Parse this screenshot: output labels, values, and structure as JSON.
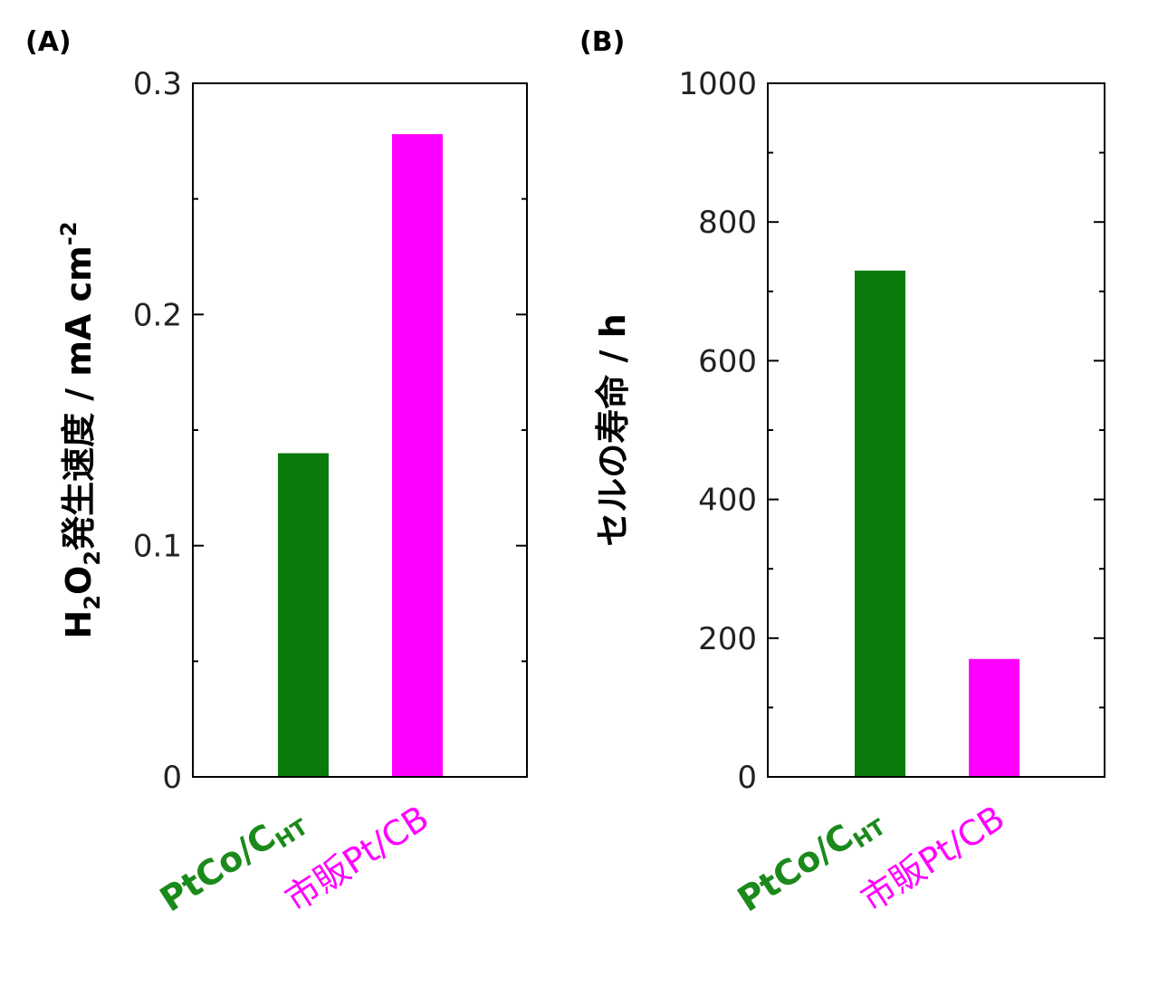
{
  "chart_data": [
    {
      "type": "bar",
      "panel": "(A)",
      "categories": [
        "PtCo/C",
        "市販Pt/CB"
      ],
      "category_subscripts": [
        "HT",
        ""
      ],
      "values": [
        0.14,
        0.278
      ],
      "colors": [
        "#0b7a0b",
        "#ff00ff"
      ],
      "ylabel": {
        "main": "H",
        "sub1": "2",
        "mid": "O",
        "sub2": "2",
        "rest": "発生速度 / mA cm",
        "sup": "-2"
      },
      "ylim": [
        0,
        0.3
      ],
      "yticks": [
        0,
        0.1,
        0.2,
        0.3
      ],
      "ytick_labels": [
        "0",
        "0.1",
        "0.2",
        "0.3"
      ],
      "yminor": [
        0.05,
        0.15,
        0.25
      ],
      "grid": false
    },
    {
      "type": "bar",
      "panel": "(B)",
      "categories": [
        "PtCo/C",
        "市販Pt/CB"
      ],
      "category_subscripts": [
        "HT",
        ""
      ],
      "values": [
        730,
        170
      ],
      "colors": [
        "#0b7a0b",
        "#ff00ff"
      ],
      "ylabel": {
        "main": "セルの寿命 / h"
      },
      "ylim": [
        0,
        1000
      ],
      "yticks": [
        0,
        200,
        400,
        600,
        800,
        1000
      ],
      "ytick_labels": [
        "0",
        "200",
        "400",
        "600",
        "800",
        "1000"
      ],
      "yminor": [
        100,
        300,
        500,
        700,
        900
      ],
      "grid": false
    }
  ]
}
